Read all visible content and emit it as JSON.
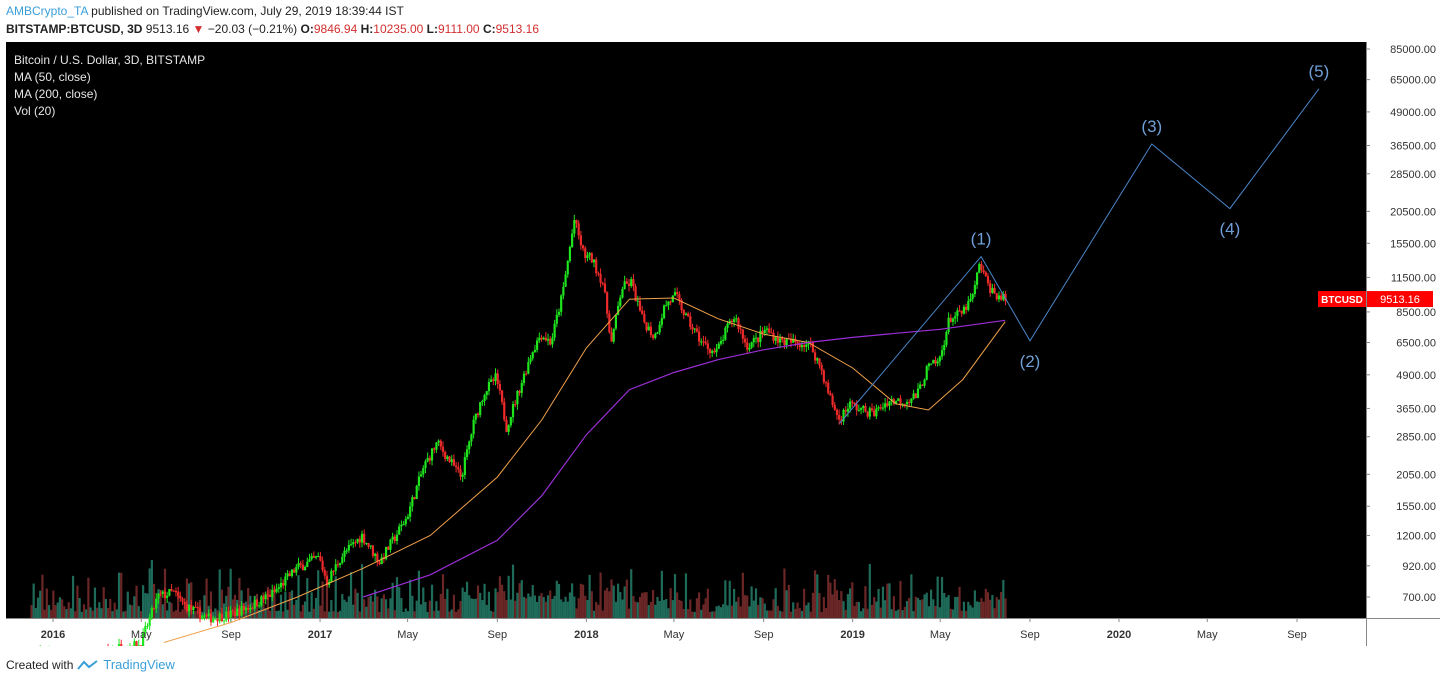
{
  "header": {
    "author": "AMBCrypto_TA",
    "published": "published on TradingView.com, July 29, 2019 18:39:44 IST",
    "symbol": "BITSTAMP:BTCUSD, 3D",
    "last": "9513.16",
    "change": "−20.03 (−0.21%)",
    "o_label": "O:",
    "o": "9846.94",
    "h_label": "H:",
    "h": "10235.00",
    "l_label": "L:",
    "l": "9111.00",
    "c_label": "C:",
    "c": "9513.16"
  },
  "legend": {
    "title": "Bitcoin / U.S. Dollar, 3D, BITSTAMP",
    "ma50": "MA (50, close)",
    "ma200": "MA (200, close)",
    "vol": "Vol (20)"
  },
  "footer": {
    "created_with": "Created with",
    "brand": "TradingView"
  },
  "colors": {
    "background": "#000000",
    "up": "#1ee51e",
    "down": "#ef2a2a",
    "ma50": "#f0a14a",
    "ma200": "#9b2fd6",
    "wave": "#4a86c8",
    "price_tag": "#ff0000"
  },
  "chart_data": {
    "type": "line",
    "scale": "log",
    "y_ticks": [
      "85000.00",
      "65000.00",
      "49000.00",
      "36500.00",
      "28500.00",
      "20500.00",
      "15500.00",
      "11500.00",
      "8500.00",
      "6500.00",
      "4900.00",
      "3650.00",
      "2850.00",
      "2050.00",
      "1550.00",
      "1200.00",
      "920.00",
      "700.00"
    ],
    "x_ticks": [
      {
        "label": "2016",
        "date": "2016-01-01",
        "bold": true
      },
      {
        "label": "May",
        "date": "2016-05-01"
      },
      {
        "label": "Sep",
        "date": "2016-09-01"
      },
      {
        "label": "2017",
        "date": "2017-01-01",
        "bold": true
      },
      {
        "label": "May",
        "date": "2017-05-01"
      },
      {
        "label": "Sep",
        "date": "2017-09-01"
      },
      {
        "label": "2018",
        "date": "2018-01-01",
        "bold": true
      },
      {
        "label": "May",
        "date": "2018-05-01"
      },
      {
        "label": "Sep",
        "date": "2018-09-01"
      },
      {
        "label": "2019",
        "date": "2019-01-01",
        "bold": true
      },
      {
        "label": "May",
        "date": "2019-05-01"
      },
      {
        "label": "Sep",
        "date": "2019-09-01"
      },
      {
        "label": "2020",
        "date": "2020-01-01",
        "bold": true
      },
      {
        "label": "May",
        "date": "2020-05-01"
      },
      {
        "label": "Sep",
        "date": "2020-09-01"
      }
    ],
    "price_series": {
      "x": [
        "2015-12-01",
        "2016-01-01",
        "2016-02-01",
        "2016-03-01",
        "2016-04-01",
        "2016-05-01",
        "2016-05-25",
        "2016-06-15",
        "2016-07-01",
        "2016-08-01",
        "2016-09-01",
        "2016-10-01",
        "2016-11-01",
        "2016-12-01",
        "2017-01-01",
        "2017-01-12",
        "2017-02-01",
        "2017-03-01",
        "2017-03-25",
        "2017-04-15",
        "2017-05-01",
        "2017-05-25",
        "2017-06-12",
        "2017-07-15",
        "2017-08-01",
        "2017-08-15",
        "2017-09-01",
        "2017-09-15",
        "2017-10-01",
        "2017-10-20",
        "2017-11-01",
        "2017-11-15",
        "2017-12-01",
        "2017-12-17",
        "2017-12-30",
        "2018-01-10",
        "2018-01-25",
        "2018-02-06",
        "2018-02-20",
        "2018-03-05",
        "2018-03-20",
        "2018-04-06",
        "2018-04-20",
        "2018-05-05",
        "2018-05-20",
        "2018-06-10",
        "2018-06-29",
        "2018-07-15",
        "2018-07-25",
        "2018-08-10",
        "2018-08-25",
        "2018-09-05",
        "2018-09-25",
        "2018-10-15",
        "2018-11-05",
        "2018-11-20",
        "2018-12-01",
        "2018-12-15",
        "2018-12-29",
        "2019-01-15",
        "2019-02-01",
        "2019-02-20",
        "2019-03-15",
        "2019-04-01",
        "2019-04-15",
        "2019-05-01",
        "2019-05-15",
        "2019-06-01",
        "2019-06-15",
        "2019-06-26",
        "2019-07-05",
        "2019-07-15",
        "2019-07-29"
      ],
      "close": [
        420,
        430,
        400,
        415,
        450,
        460,
        700,
        730,
        650,
        580,
        600,
        650,
        730,
        900,
        990,
        800,
        1000,
        1200,
        950,
        1180,
        1400,
        2200,
        2700,
        2000,
        3200,
        4200,
        4800,
        3100,
        4200,
        6000,
        7000,
        6500,
        10000,
        19000,
        14000,
        13500,
        11000,
        6500,
        10500,
        11000,
        8000,
        6800,
        9000,
        9800,
        8000,
        6500,
        5900,
        7400,
        8200,
        6300,
        6700,
        7300,
        6600,
        6500,
        6400,
        5200,
        4100,
        3300,
        3800,
        3600,
        3500,
        3900,
        3900,
        4100,
        5200,
        5500,
        8000,
        8400,
        9500,
        13000,
        11000,
        10000,
        9513.16
      ]
    },
    "ma50": {
      "x": [
        "2016-06-01",
        "2016-09-01",
        "2016-12-01",
        "2017-03-01",
        "2017-06-01",
        "2017-09-01",
        "2017-11-01",
        "2018-01-01",
        "2018-03-01",
        "2018-05-01",
        "2018-07-01",
        "2018-09-01",
        "2018-11-01",
        "2019-01-01",
        "2019-03-01",
        "2019-04-15",
        "2019-06-01",
        "2019-07-29"
      ],
      "values": [
        470,
        560,
        700,
        900,
        1200,
        2000,
        3300,
        6200,
        9500,
        9600,
        8000,
        7000,
        6500,
        5200,
        3800,
        3600,
        4700,
        7800
      ]
    },
    "ma200": {
      "x": [
        "2017-03-01",
        "2017-06-01",
        "2017-09-01",
        "2017-11-01",
        "2018-01-01",
        "2018-03-01",
        "2018-05-01",
        "2018-07-01",
        "2018-09-01",
        "2018-11-01",
        "2019-01-01",
        "2019-03-01",
        "2019-05-01",
        "2019-07-29"
      ],
      "values": [
        700,
        850,
        1150,
        1700,
        2900,
        4300,
        5000,
        5600,
        6100,
        6500,
        6800,
        7050,
        7300,
        7900
      ]
    },
    "wave_projection": {
      "x": [
        "2018-12-14",
        "2019-06-26",
        "2019-09-01",
        "2020-02-15",
        "2020-06-01",
        "2020-10-01"
      ],
      "values": [
        3200,
        13800,
        6600,
        37000,
        21000,
        60000
      ]
    },
    "wave_labels": [
      {
        "text": "(1)",
        "x": "2019-06-26",
        "y": 13800,
        "pos": "above"
      },
      {
        "text": "(2)",
        "x": "2019-09-01",
        "y": 6600,
        "pos": "below"
      },
      {
        "text": "(3)",
        "x": "2020-02-15",
        "y": 37000,
        "pos": "above"
      },
      {
        "text": "(4)",
        "x": "2020-06-01",
        "y": 21000,
        "pos": "below"
      },
      {
        "text": "(5)",
        "x": "2020-10-01",
        "y": 60000,
        "pos": "above"
      }
    ],
    "last_price_tag": {
      "symbol": "BTCUSD",
      "value": "9513.16"
    },
    "volume_note": "Vol (20)"
  }
}
